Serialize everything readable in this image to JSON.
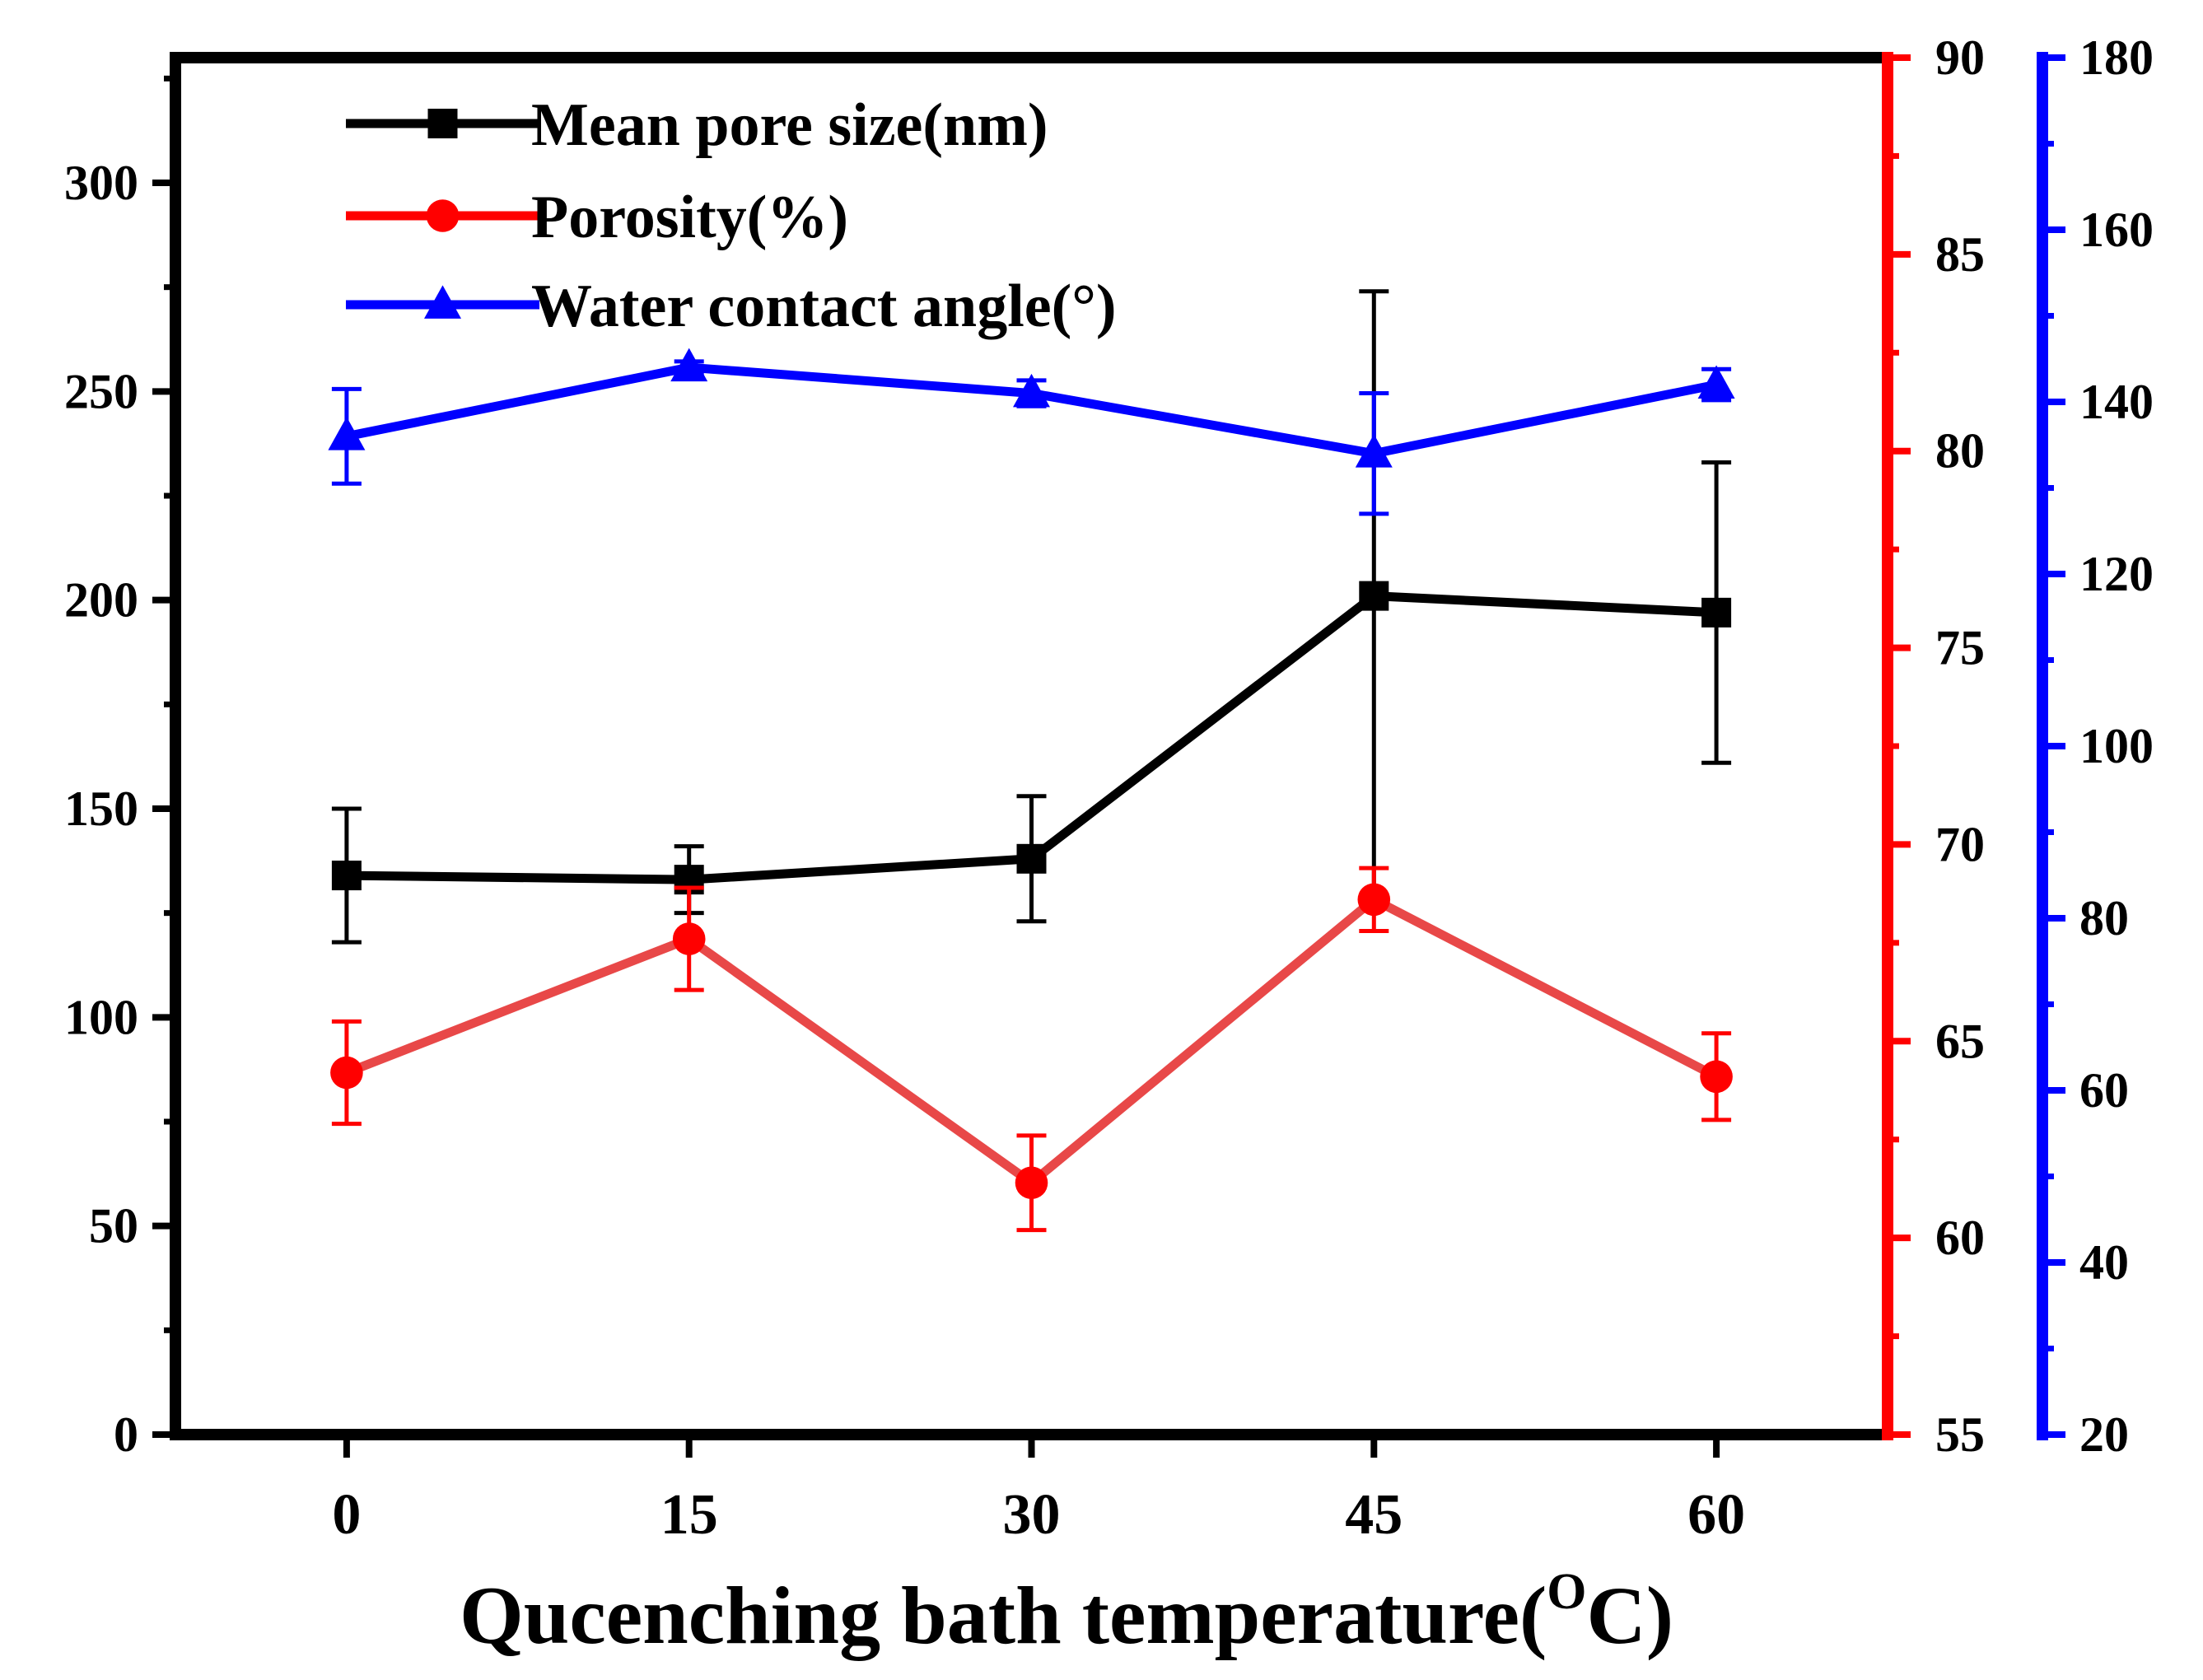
{
  "chart_data": {
    "type": "line",
    "xlabel": "Qucenching bath temperature(",
    "xlabel_sup": "O",
    "xlabel_suffix": "C)",
    "categories": [
      "0",
      "15",
      "30",
      "45",
      "60"
    ],
    "x": [
      0,
      15,
      30,
      45,
      60
    ],
    "xlim": [
      -7.5,
      67.5
    ],
    "legend_position": "top-left",
    "axes": {
      "left": {
        "ylim": [
          0,
          330
        ],
        "ticks": [
          0,
          50,
          100,
          150,
          200,
          250,
          300
        ],
        "color": "#000000"
      },
      "right_red": {
        "ylim": [
          55,
          90
        ],
        "ticks": [
          55,
          60,
          65,
          70,
          75,
          80,
          85,
          90
        ],
        "color": "#ff0000"
      },
      "right_blue": {
        "ylim": [
          20,
          180
        ],
        "ticks": [
          20,
          40,
          60,
          80,
          100,
          120,
          140,
          160,
          180
        ],
        "color": "#0000ff"
      }
    },
    "series": [
      {
        "name": "Mean pore size(nm)",
        "axis": "left",
        "marker": "square",
        "color": "#000000",
        "values": [
          134,
          133,
          138,
          201,
          197
        ],
        "errors": [
          16,
          8,
          15,
          73,
          36
        ]
      },
      {
        "name": "Porosity(%)",
        "axis": "right_red",
        "marker": "circle",
        "color": "#ff0000",
        "line_color": "#e84848",
        "values": [
          64.2,
          67.6,
          61.4,
          68.6,
          64.1
        ],
        "errors": [
          1.3,
          1.3,
          1.2,
          0.8,
          1.1
        ]
      },
      {
        "name": "Water contact angle(°)",
        "axis": "right_blue",
        "marker": "triangle",
        "color": "#0000ff",
        "values": [
          136,
          144,
          141,
          134,
          142
        ],
        "errors": [
          5.5,
          0.7,
          1.5,
          7,
          1.8
        ]
      }
    ]
  }
}
